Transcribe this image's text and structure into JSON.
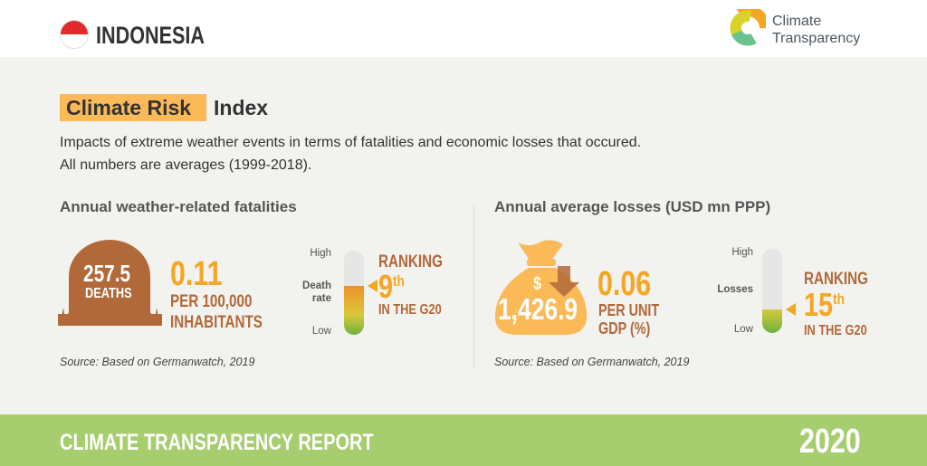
{
  "header": {
    "country": "INDONESIA",
    "logo_line1": "Climate",
    "logo_line2": "Transparency"
  },
  "section": {
    "title_highlight": "Climate Risk",
    "title_rest": "Index",
    "desc_line1": "Impacts of extreme weather events in terms of fatalities and economic losses that occured.",
    "desc_line2": "All numbers are averages (1999-2018)."
  },
  "fatalities": {
    "heading": "Annual weather-related fatalities",
    "deaths_value": "257.5",
    "deaths_label": "DEATHS",
    "rate_value": "0.11",
    "rate_line1": "PER 100,000",
    "rate_line2": "INHABITANTS",
    "scale_high": "High",
    "scale_mid_line1": "Death",
    "scale_mid_line2": "rate",
    "scale_low": "Low",
    "ranking_label": "RANKING",
    "rank": "9",
    "rank_suffix": "th",
    "rank_context": "IN THE G20",
    "fill_percent": 58,
    "source": "Source: Based on Germanwatch, 2019"
  },
  "losses": {
    "heading": "Annual average losses (USD mn PPP)",
    "currency": "$",
    "losses_value": "1,426.9",
    "gdp_value": "0.06",
    "gdp_line1": "PER UNIT",
    "gdp_line2": "GDP (%)",
    "scale_high": "High",
    "scale_mid": "Losses",
    "scale_low": "Low",
    "ranking_label": "RANKING",
    "rank": "15",
    "rank_suffix": "th",
    "rank_context": "IN THE G20",
    "fill_percent": 28,
    "source": "Source: Based on Germanwatch, 2019"
  },
  "footer": {
    "report": "CLIMATE TRANSPARENCY REPORT",
    "year": "2020"
  },
  "colors": {
    "brown": "#b2693a",
    "orange": "#f5a623",
    "green": "#a6cd6e",
    "highlight": "#fbb957"
  }
}
